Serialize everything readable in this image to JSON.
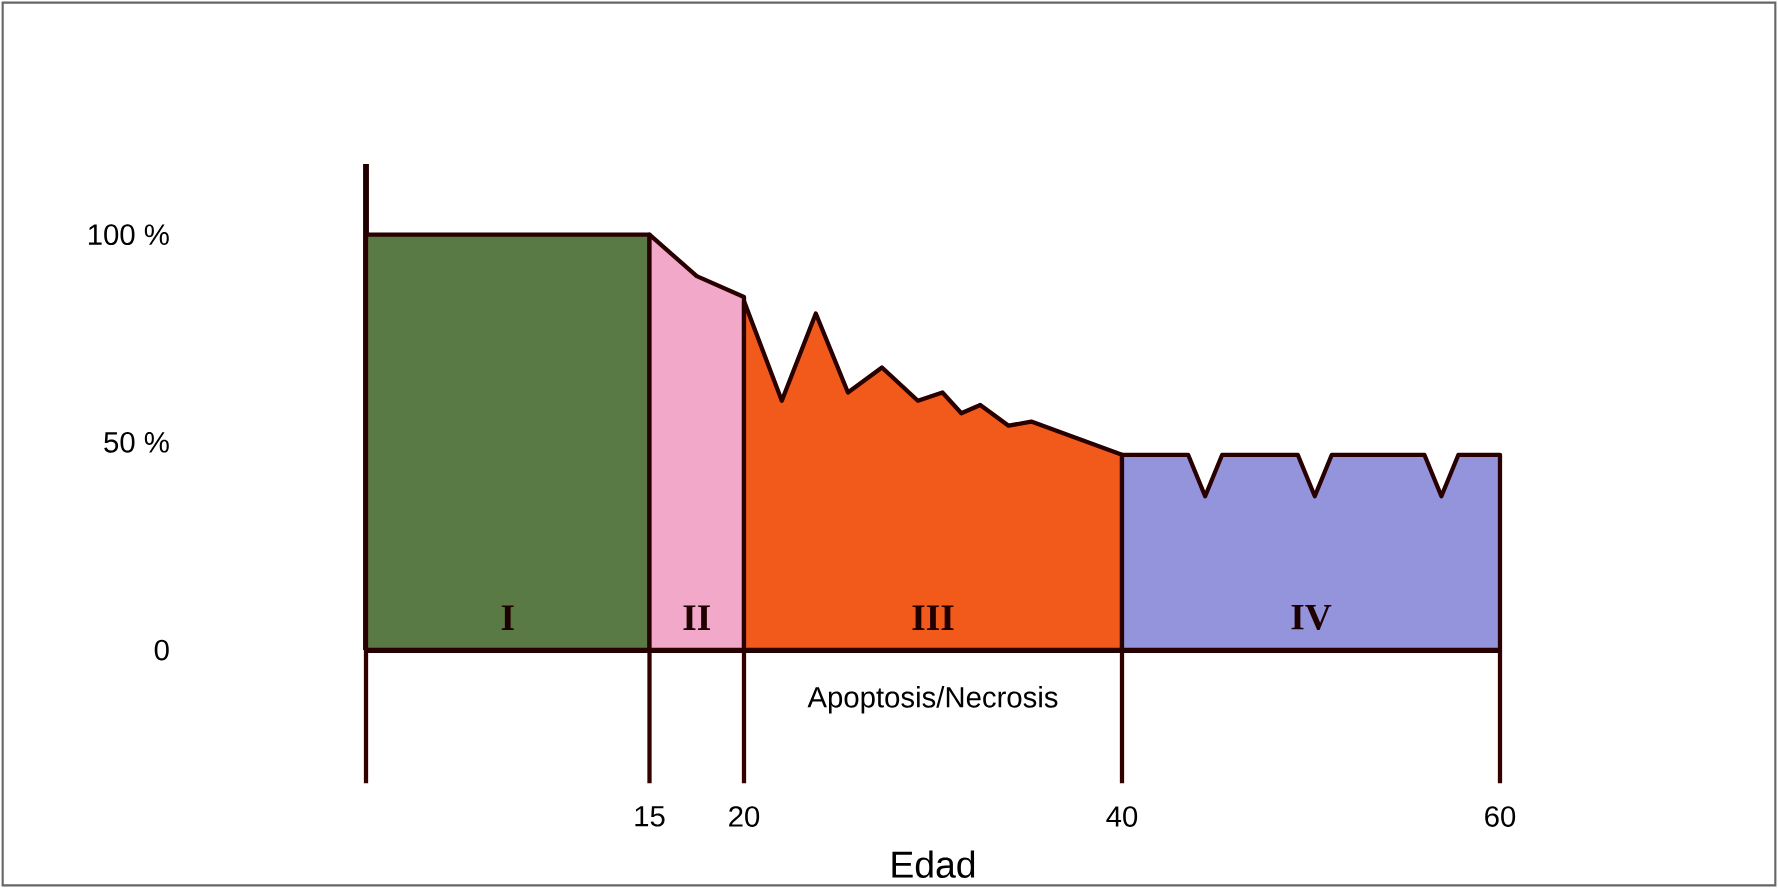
{
  "chart_data": {
    "type": "area",
    "xlabel": "Edad",
    "xlim": [
      0,
      60
    ],
    "ylim": [
      0,
      117
    ],
    "xticks": [
      {
        "value": 0,
        "label": null
      },
      15,
      20,
      40,
      60
    ],
    "yticks": [
      0,
      {
        "value": 50,
        "label": "50 %"
      },
      {
        "value": 100,
        "label": "100 %"
      }
    ],
    "grid": false,
    "series": [
      {
        "color": "#5a7a45",
        "x": [
          0,
          15
        ],
        "values": [
          100,
          100
        ]
      },
      {
        "color": "#f2a9c9",
        "x": [
          15,
          17.5,
          20
        ],
        "values": [
          100,
          90,
          85
        ]
      },
      {
        "color": "#f25a1c",
        "x": [
          20,
          22,
          23.8,
          25.5,
          27.3,
          29.2,
          30.5,
          31.5,
          32.5,
          34,
          35.2,
          40
        ],
        "values": [
          84,
          60,
          81,
          62,
          68,
          60,
          62,
          57,
          59,
          54,
          55,
          47
        ]
      },
      {
        "color": "#9494dc",
        "x": [
          40,
          43.5,
          44.4,
          45.3,
          49.3,
          50.2,
          51.1,
          56,
          56.9,
          57.8,
          60
        ],
        "values": [
          47,
          47,
          37,
          47,
          47,
          37,
          47,
          47,
          37,
          47,
          47
        ]
      }
    ],
    "annotations": [
      "I",
      "II",
      "III",
      "IV",
      "Apoptosis/Necrosis"
    ]
  }
}
